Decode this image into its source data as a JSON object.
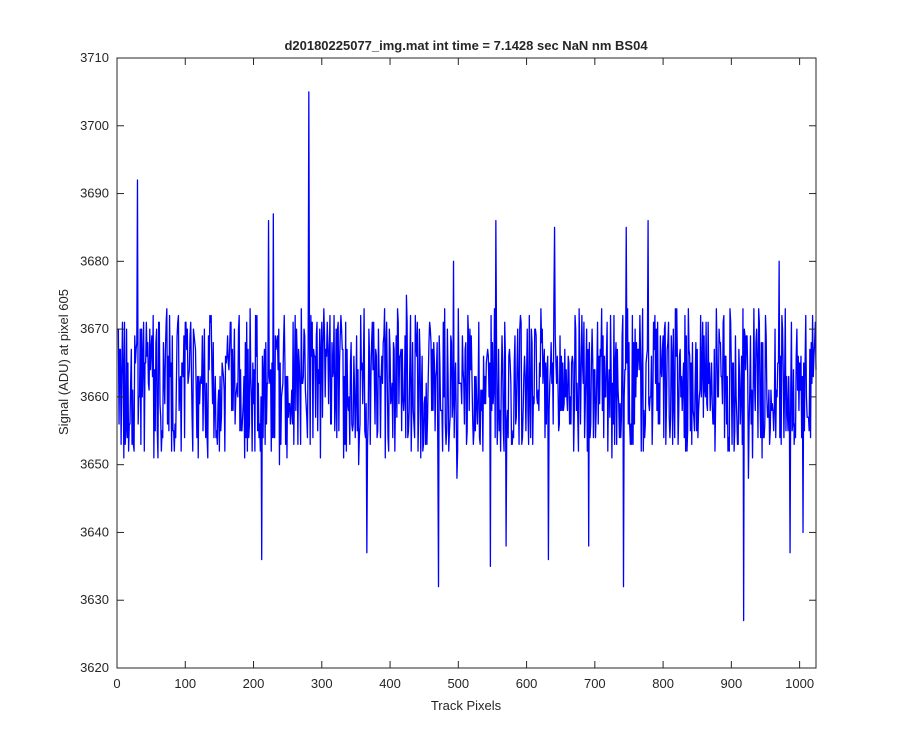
{
  "chart_data": {
    "type": "line",
    "title": "d20180225077_img.mat int time = 7.1428 sec  NaN nm BS04",
    "xlabel": "Track Pixels",
    "ylabel": "Signal (ADU) at pixel 605",
    "xlim": [
      0,
      1024
    ],
    "ylim": [
      3620,
      3710
    ],
    "xticks": [
      0,
      100,
      200,
      300,
      400,
      500,
      600,
      700,
      800,
      900,
      1000
    ],
    "yticks": [
      3620,
      3630,
      3640,
      3650,
      3660,
      3670,
      3680,
      3690,
      3700,
      3710
    ],
    "grid": false,
    "legend": "none",
    "series": [
      {
        "color": "#0000ff",
        "x_start": 1,
        "x_step": 1,
        "count": 1024,
        "baseline": 3662,
        "noise_amplitude": 8,
        "key_points": [
          [
            30,
            3692
          ],
          [
            212,
            3636
          ],
          [
            222,
            3686
          ],
          [
            229,
            3687
          ],
          [
            281,
            3705
          ],
          [
            366,
            3637
          ],
          [
            471,
            3632
          ],
          [
            493,
            3680
          ],
          [
            547,
            3635
          ],
          [
            555,
            3686
          ],
          [
            570,
            3638
          ],
          [
            632,
            3636
          ],
          [
            641,
            3685
          ],
          [
            691,
            3638
          ],
          [
            742,
            3632
          ],
          [
            746,
            3685
          ],
          [
            778,
            3686
          ],
          [
            918,
            3627
          ],
          [
            970,
            3680
          ],
          [
            986,
            3637
          ],
          [
            1005,
            3640
          ]
        ]
      }
    ]
  }
}
